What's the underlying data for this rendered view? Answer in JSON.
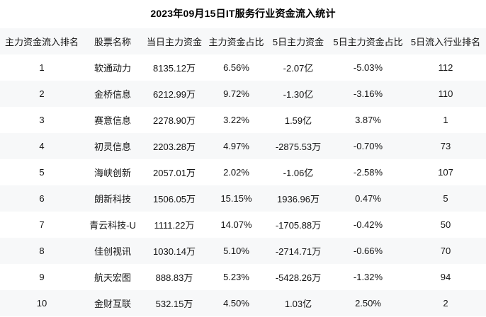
{
  "title": "2023年09月15日IT服务行业资金流入统计",
  "colors": {
    "background": "#ffffff",
    "stripe_bg": "#f7f8f9",
    "text": "#141414",
    "title_text": "#000000"
  },
  "chart_data": {
    "type": "table",
    "title": "2023年09月15日IT服务行业资金流入统计",
    "columns": [
      "主力资金流入排名",
      "股票名称",
      "当日主力资金",
      "主力资金占比",
      "5日主力资金",
      "5日主力资金占比",
      "5日流入行业排名"
    ],
    "rows": [
      [
        "1",
        "软通动力",
        "8135.12万",
        "6.56%",
        "-2.07亿",
        "-5.03%",
        "112"
      ],
      [
        "2",
        "金桥信息",
        "6212.99万",
        "9.72%",
        "-1.30亿",
        "-3.16%",
        "110"
      ],
      [
        "3",
        "赛意信息",
        "2278.90万",
        "3.22%",
        "1.59亿",
        "3.87%",
        "1"
      ],
      [
        "4",
        "初灵信息",
        "2203.28万",
        "4.97%",
        "-2875.53万",
        "-0.70%",
        "73"
      ],
      [
        "5",
        "海峡创新",
        "2057.01万",
        "2.02%",
        "-1.06亿",
        "-2.58%",
        "107"
      ],
      [
        "6",
        "朗新科技",
        "1506.05万",
        "15.15%",
        "1936.96万",
        "0.47%",
        "5"
      ],
      [
        "7",
        "青云科技-U",
        "1111.22万",
        "14.07%",
        "-1705.88万",
        "-0.42%",
        "50"
      ],
      [
        "8",
        "佳创视讯",
        "1030.14万",
        "5.10%",
        "-2714.71万",
        "-0.66%",
        "70"
      ],
      [
        "9",
        "航天宏图",
        "888.83万",
        "5.23%",
        "-5428.26万",
        "-1.32%",
        "94"
      ],
      [
        "10",
        "金财互联",
        "532.15万",
        "4.50%",
        "1.03亿",
        "2.50%",
        "2"
      ]
    ]
  }
}
